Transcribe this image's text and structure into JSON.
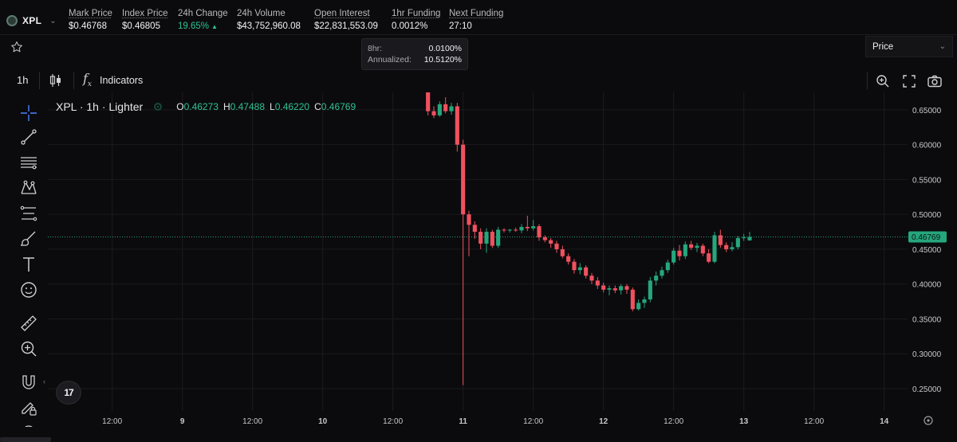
{
  "market": {
    "name": "XPL",
    "logo_icon": "xpl-token-icon"
  },
  "stats": [
    {
      "label": "Mark Price",
      "value": "$0.46768",
      "underline": true
    },
    {
      "label": "Index Price",
      "value": "$0.46805",
      "underline": true
    },
    {
      "label": "24h Change",
      "value": "19.65%",
      "underline": false,
      "positive": true
    },
    {
      "label": "24h Volume",
      "value": "$43,752,960.08",
      "underline": false
    },
    {
      "label": "Open Interest",
      "value": "$22,831,553.09",
      "underline": true
    },
    {
      "label": "1hr Funding",
      "value": "0.0012%",
      "underline": true
    },
    {
      "label": "Next Funding",
      "value": "27:10",
      "underline": true
    }
  ],
  "funding_tooltip": {
    "rows": [
      {
        "k": "8hr:",
        "v": "0.0100%"
      },
      {
        "k": "Annualized:",
        "v": "10.5120%"
      }
    ]
  },
  "price_select": {
    "value": "Price"
  },
  "toolbar": {
    "interval": "1h",
    "indicators_label": "Indicators"
  },
  "legend": {
    "symbol": "XPL · 1h · Lighter",
    "open_label": "O",
    "open": "0.46273",
    "high_label": "H",
    "high": "0.47488",
    "low_label": "L",
    "low": "0.46220",
    "close_label": "C",
    "close": "0.46769"
  },
  "tv_logo": "17",
  "colors": {
    "up": "#26a67c",
    "down": "#f0515f",
    "accent": "#2fc38f",
    "background": "#0b0b0d"
  },
  "chart_data": {
    "type": "candlestick",
    "y_ticks": [
      0.65,
      0.6,
      0.55,
      0.5,
      0.45,
      0.4,
      0.35,
      0.3,
      0.25
    ],
    "y_tick_labels": [
      "0.65000",
      "0.60000",
      "0.55000",
      "0.50000",
      "0.45000",
      "0.40000",
      "0.35000",
      "0.30000",
      "0.25000"
    ],
    "ylim": [
      0.218,
      0.675
    ],
    "x_tick_labels": [
      "12:00",
      "9",
      "12:00",
      "10",
      "12:00",
      "11",
      "12:00",
      "12",
      "12:00",
      "13",
      "12:00",
      "14"
    ],
    "x_ticks_hours": [
      12,
      24,
      36,
      48,
      60,
      72,
      84,
      96,
      108,
      120,
      132,
      144
    ],
    "x_range_hours": [
      1,
      148
    ],
    "last_price": 0.46769,
    "last_price_label": "0.46769",
    "candles": [
      {
        "t": 66,
        "o": 0.675,
        "h": 0.678,
        "l": 0.642,
        "c": 0.648
      },
      {
        "t": 67,
        "o": 0.648,
        "h": 0.655,
        "l": 0.638,
        "c": 0.642
      },
      {
        "t": 68,
        "o": 0.642,
        "h": 0.662,
        "l": 0.64,
        "c": 0.658
      },
      {
        "t": 69,
        "o": 0.658,
        "h": 0.668,
        "l": 0.645,
        "c": 0.648
      },
      {
        "t": 70,
        "o": 0.648,
        "h": 0.66,
        "l": 0.643,
        "c": 0.655
      },
      {
        "t": 71,
        "o": 0.655,
        "h": 0.66,
        "l": 0.59,
        "c": 0.6
      },
      {
        "t": 72,
        "o": 0.6,
        "h": 0.607,
        "l": 0.255,
        "c": 0.5
      },
      {
        "t": 73,
        "o": 0.5,
        "h": 0.505,
        "l": 0.44,
        "c": 0.485
      },
      {
        "t": 74,
        "o": 0.485,
        "h": 0.49,
        "l": 0.465,
        "c": 0.475
      },
      {
        "t": 75,
        "o": 0.475,
        "h": 0.48,
        "l": 0.45,
        "c": 0.458
      },
      {
        "t": 76,
        "o": 0.458,
        "h": 0.48,
        "l": 0.445,
        "c": 0.475
      },
      {
        "t": 77,
        "o": 0.475,
        "h": 0.478,
        "l": 0.452,
        "c": 0.455
      },
      {
        "t": 78,
        "o": 0.455,
        "h": 0.482,
        "l": 0.452,
        "c": 0.478
      },
      {
        "t": 79,
        "o": 0.478,
        "h": 0.48,
        "l": 0.474,
        "c": 0.477
      },
      {
        "t": 80,
        "o": 0.477,
        "h": 0.479,
        "l": 0.474,
        "c": 0.478
      },
      {
        "t": 81,
        "o": 0.478,
        "h": 0.481,
        "l": 0.475,
        "c": 0.477
      },
      {
        "t": 82,
        "o": 0.477,
        "h": 0.486,
        "l": 0.473,
        "c": 0.482
      },
      {
        "t": 83,
        "o": 0.482,
        "h": 0.498,
        "l": 0.476,
        "c": 0.48
      },
      {
        "t": 84,
        "o": 0.48,
        "h": 0.492,
        "l": 0.477,
        "c": 0.483
      },
      {
        "t": 85,
        "o": 0.483,
        "h": 0.486,
        "l": 0.462,
        "c": 0.467
      },
      {
        "t": 86,
        "o": 0.467,
        "h": 0.47,
        "l": 0.46,
        "c": 0.463
      },
      {
        "t": 87,
        "o": 0.463,
        "h": 0.466,
        "l": 0.452,
        "c": 0.458
      },
      {
        "t": 88,
        "o": 0.458,
        "h": 0.462,
        "l": 0.445,
        "c": 0.45
      },
      {
        "t": 89,
        "o": 0.45,
        "h": 0.455,
        "l": 0.437,
        "c": 0.44
      },
      {
        "t": 90,
        "o": 0.44,
        "h": 0.444,
        "l": 0.428,
        "c": 0.432
      },
      {
        "t": 91,
        "o": 0.432,
        "h": 0.436,
        "l": 0.415,
        "c": 0.42
      },
      {
        "t": 92,
        "o": 0.42,
        "h": 0.43,
        "l": 0.414,
        "c": 0.424
      },
      {
        "t": 93,
        "o": 0.424,
        "h": 0.427,
        "l": 0.408,
        "c": 0.412
      },
      {
        "t": 94,
        "o": 0.412,
        "h": 0.416,
        "l": 0.4,
        "c": 0.405
      },
      {
        "t": 95,
        "o": 0.405,
        "h": 0.41,
        "l": 0.393,
        "c": 0.398
      },
      {
        "t": 96,
        "o": 0.398,
        "h": 0.402,
        "l": 0.388,
        "c": 0.392
      },
      {
        "t": 97,
        "o": 0.392,
        "h": 0.398,
        "l": 0.384,
        "c": 0.394
      },
      {
        "t": 98,
        "o": 0.394,
        "h": 0.398,
        "l": 0.387,
        "c": 0.391
      },
      {
        "t": 99,
        "o": 0.391,
        "h": 0.4,
        "l": 0.385,
        "c": 0.397
      },
      {
        "t": 100,
        "o": 0.397,
        "h": 0.4,
        "l": 0.386,
        "c": 0.392
      },
      {
        "t": 101,
        "o": 0.392,
        "h": 0.395,
        "l": 0.361,
        "c": 0.364
      },
      {
        "t": 102,
        "o": 0.364,
        "h": 0.378,
        "l": 0.362,
        "c": 0.373
      },
      {
        "t": 103,
        "o": 0.373,
        "h": 0.382,
        "l": 0.366,
        "c": 0.378
      },
      {
        "t": 104,
        "o": 0.378,
        "h": 0.41,
        "l": 0.374,
        "c": 0.405
      },
      {
        "t": 105,
        "o": 0.405,
        "h": 0.418,
        "l": 0.398,
        "c": 0.412
      },
      {
        "t": 106,
        "o": 0.412,
        "h": 0.425,
        "l": 0.408,
        "c": 0.42
      },
      {
        "t": 107,
        "o": 0.42,
        "h": 0.435,
        "l": 0.416,
        "c": 0.431
      },
      {
        "t": 108,
        "o": 0.431,
        "h": 0.452,
        "l": 0.428,
        "c": 0.448
      },
      {
        "t": 109,
        "o": 0.448,
        "h": 0.456,
        "l": 0.434,
        "c": 0.44
      },
      {
        "t": 110,
        "o": 0.44,
        "h": 0.461,
        "l": 0.436,
        "c": 0.457
      },
      {
        "t": 111,
        "o": 0.457,
        "h": 0.462,
        "l": 0.449,
        "c": 0.452
      },
      {
        "t": 112,
        "o": 0.452,
        "h": 0.459,
        "l": 0.446,
        "c": 0.455
      },
      {
        "t": 113,
        "o": 0.455,
        "h": 0.458,
        "l": 0.44,
        "c": 0.444
      },
      {
        "t": 114,
        "o": 0.444,
        "h": 0.45,
        "l": 0.43,
        "c": 0.432
      },
      {
        "t": 115,
        "o": 0.432,
        "h": 0.475,
        "l": 0.43,
        "c": 0.47
      },
      {
        "t": 116,
        "o": 0.47,
        "h": 0.478,
        "l": 0.452,
        "c": 0.456
      },
      {
        "t": 117,
        "o": 0.456,
        "h": 0.46,
        "l": 0.446,
        "c": 0.45
      },
      {
        "t": 118,
        "o": 0.45,
        "h": 0.46,
        "l": 0.447,
        "c": 0.453
      },
      {
        "t": 119,
        "o": 0.453,
        "h": 0.469,
        "l": 0.45,
        "c": 0.466
      },
      {
        "t": 120,
        "o": 0.466,
        "h": 0.472,
        "l": 0.462,
        "c": 0.467
      },
      {
        "t": 121,
        "o": 0.46273,
        "h": 0.47488,
        "l": 0.4622,
        "c": 0.46769
      }
    ]
  }
}
